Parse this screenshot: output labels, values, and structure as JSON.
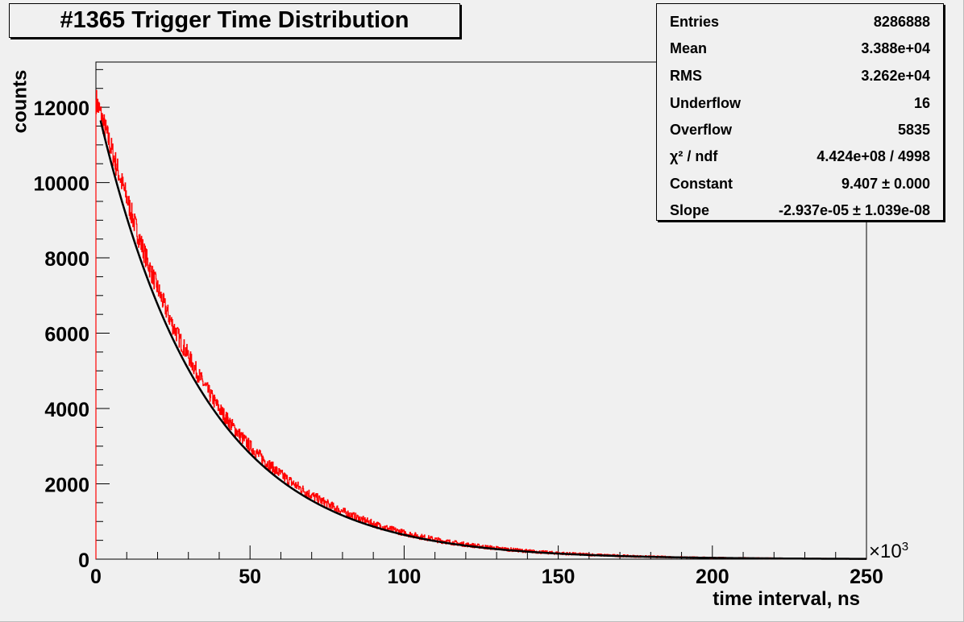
{
  "title": "#1365 Trigger Time Distribution",
  "stats": {
    "rows": [
      {
        "label": "Entries",
        "value": "8286888"
      },
      {
        "label": "Mean",
        "value": "3.388e+04"
      },
      {
        "label": "RMS",
        "value": "3.262e+04"
      },
      {
        "label": "Underflow",
        "value": "16"
      },
      {
        "label": "Overflow",
        "value": "5835"
      },
      {
        "label": "χ² / ndf",
        "value": "4.424e+08 / 4998"
      },
      {
        "label": "Constant",
        "value": "9.407 ± 0.000"
      },
      {
        "label": "Slope",
        "value": "-2.937e-05 ± 1.039e-08"
      }
    ]
  },
  "chart_data": {
    "type": "histogram",
    "title": "#1365 Trigger Time Distribution",
    "xlabel": "time interval, ns",
    "ylabel": "counts",
    "x_multiplier": "×10³",
    "x_multiplier_base": "×10",
    "x_multiplier_exp": "3",
    "xlim": [
      0,
      250
    ],
    "ylim": [
      0,
      13200
    ],
    "xticks": [
      0,
      50,
      100,
      150,
      200,
      250
    ],
    "yticks": [
      0,
      2000,
      4000,
      6000,
      8000,
      10000,
      12000
    ],
    "log_scale": false,
    "grid": false,
    "series": [
      {
        "name": "histogram",
        "color": "#ff0000",
        "x": [
          0,
          2,
          5,
          10,
          15,
          20,
          25,
          30,
          40,
          50,
          60,
          70,
          80,
          90,
          100,
          110,
          120,
          130,
          140,
          150,
          160,
          170,
          180,
          190,
          200,
          210,
          220,
          230,
          240,
          250
        ],
        "y": [
          12200,
          11700,
          10900,
          9600,
          8300,
          7200,
          6200,
          5400,
          4000,
          3000,
          2250,
          1700,
          1270,
          940,
          700,
          520,
          390,
          290,
          215,
          160,
          120,
          90,
          65,
          50,
          35,
          27,
          20,
          15,
          11,
          8
        ],
        "fluctuation": 300
      },
      {
        "name": "expo fit",
        "color": "#000000",
        "function": "exp(Constant + Slope*x)",
        "constant": 9.407,
        "slope": -2.937e-05,
        "x_range": [
          1.5,
          250
        ]
      }
    ],
    "stats": {
      "entries": 8286888,
      "mean": 33880,
      "rms": 32620,
      "underflow": 16,
      "overflow": 5835,
      "chi2": 442400000,
      "ndf": 4998,
      "constant": 9.407,
      "constant_err": 0.0,
      "slope": -2.937e-05,
      "slope_err": 1.039e-08
    },
    "legend_position": "top-right"
  }
}
